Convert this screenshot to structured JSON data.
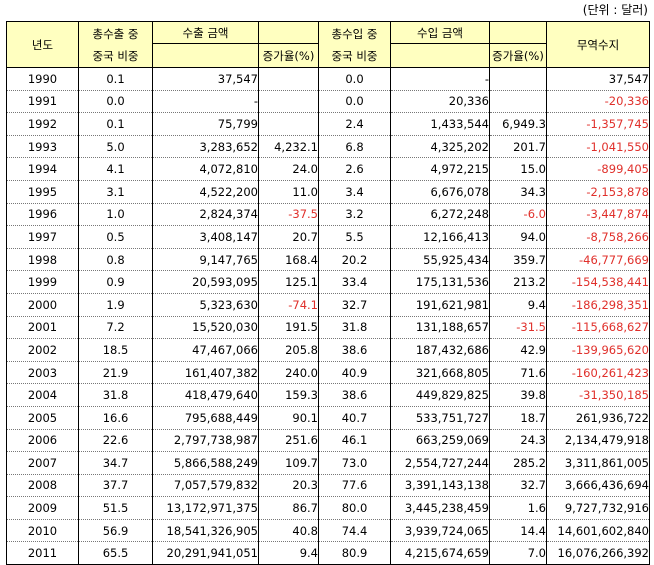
{
  "unit_note": "(단위 : 달러)",
  "headers": {
    "year": "년도",
    "export_share_line1": "총수출 중",
    "export_share_line2": "중국 비중",
    "export_amount": "수출 금액",
    "export_growth": "증가율(%)",
    "import_share_line1": "총수입 중",
    "import_share_line2": "중국 비중",
    "import_amount": "수입 금액",
    "import_growth": "증가율(%)",
    "balance": "무역수지"
  },
  "rows": [
    {
      "year": "1990",
      "export_share": "0.1",
      "export_amount": "37,547",
      "export_growth": "",
      "import_share": "0.0",
      "import_amount": "-",
      "import_growth": "",
      "balance": "37,547"
    },
    {
      "year": "1991",
      "export_share": "0.0",
      "export_amount": "-",
      "export_growth": "",
      "import_share": "0.0",
      "import_amount": "20,336",
      "import_growth": "",
      "balance": "-20,336"
    },
    {
      "year": "1992",
      "export_share": "0.1",
      "export_amount": "75,799",
      "export_growth": "",
      "import_share": "2.4",
      "import_amount": "1,433,544",
      "import_growth": "6,949.3",
      "balance": "-1,357,745"
    },
    {
      "year": "1993",
      "export_share": "5.0",
      "export_amount": "3,283,652",
      "export_growth": "4,232.1",
      "import_share": "6.8",
      "import_amount": "4,325,202",
      "import_growth": "201.7",
      "balance": "-1,041,550"
    },
    {
      "year": "1994",
      "export_share": "4.1",
      "export_amount": "4,072,810",
      "export_growth": "24.0",
      "import_share": "2.6",
      "import_amount": "4,972,215",
      "import_growth": "15.0",
      "balance": "-899,405"
    },
    {
      "year": "1995",
      "export_share": "3.1",
      "export_amount": "4,522,200",
      "export_growth": "11.0",
      "import_share": "3.4",
      "import_amount": "6,676,078",
      "import_growth": "34.3",
      "balance": "-2,153,878"
    },
    {
      "year": "1996",
      "export_share": "1.0",
      "export_amount": "2,824,374",
      "export_growth": "-37.5",
      "import_share": "3.2",
      "import_amount": "6,272,248",
      "import_growth": "-6.0",
      "balance": "-3,447,874"
    },
    {
      "year": "1997",
      "export_share": "0.5",
      "export_amount": "3,408,147",
      "export_growth": "20.7",
      "import_share": "5.5",
      "import_amount": "12,166,413",
      "import_growth": "94.0",
      "balance": "-8,758,266"
    },
    {
      "year": "1998",
      "export_share": "0.8",
      "export_amount": "9,147,765",
      "export_growth": "168.4",
      "import_share": "20.2",
      "import_amount": "55,925,434",
      "import_growth": "359.7",
      "balance": "-46,777,669"
    },
    {
      "year": "1999",
      "export_share": "0.9",
      "export_amount": "20,593,095",
      "export_growth": "125.1",
      "import_share": "33.4",
      "import_amount": "175,131,536",
      "import_growth": "213.2",
      "balance": "-154,538,441"
    },
    {
      "year": "2000",
      "export_share": "1.9",
      "export_amount": "5,323,630",
      "export_growth": "-74.1",
      "import_share": "32.7",
      "import_amount": "191,621,981",
      "import_growth": "9.4",
      "balance": "-186,298,351"
    },
    {
      "year": "2001",
      "export_share": "7.2",
      "export_amount": "15,520,030",
      "export_growth": "191.5",
      "import_share": "31.8",
      "import_amount": "131,188,657",
      "import_growth": "-31.5",
      "balance": "-115,668,627"
    },
    {
      "year": "2002",
      "export_share": "18.5",
      "export_amount": "47,467,066",
      "export_growth": "205.8",
      "import_share": "38.6",
      "import_amount": "187,432,686",
      "import_growth": "42.9",
      "balance": "-139,965,620"
    },
    {
      "year": "2003",
      "export_share": "21.9",
      "export_amount": "161,407,382",
      "export_growth": "240.0",
      "import_share": "40.9",
      "import_amount": "321,668,805",
      "import_growth": "71.6",
      "balance": "-160,261,423"
    },
    {
      "year": "2004",
      "export_share": "31.8",
      "export_amount": "418,479,640",
      "export_growth": "159.3",
      "import_share": "38.6",
      "import_amount": "449,829,825",
      "import_growth": "39.8",
      "balance": "-31,350,185"
    },
    {
      "year": "2005",
      "export_share": "16.6",
      "export_amount": "795,688,449",
      "export_growth": "90.1",
      "import_share": "40.7",
      "import_amount": "533,751,727",
      "import_growth": "18.7",
      "balance": "261,936,722"
    },
    {
      "year": "2006",
      "export_share": "22.6",
      "export_amount": "2,797,738,987",
      "export_growth": "251.6",
      "import_share": "46.1",
      "import_amount": "663,259,069",
      "import_growth": "24.3",
      "balance": "2,134,479,918"
    },
    {
      "year": "2007",
      "export_share": "34.7",
      "export_amount": "5,866,588,249",
      "export_growth": "109.7",
      "import_share": "73.0",
      "import_amount": "2,554,727,244",
      "import_growth": "285.2",
      "balance": "3,311,861,005"
    },
    {
      "year": "2008",
      "export_share": "37.7",
      "export_amount": "7,057,579,832",
      "export_growth": "20.3",
      "import_share": "77.6",
      "import_amount": "3,391,143,138",
      "import_growth": "32.7",
      "balance": "3,666,436,694"
    },
    {
      "year": "2009",
      "export_share": "51.5",
      "export_amount": "13,172,971,375",
      "export_growth": "86.7",
      "import_share": "80.0",
      "import_amount": "3,445,238,459",
      "import_growth": "1.6",
      "balance": "9,727,732,916"
    },
    {
      "year": "2010",
      "export_share": "56.9",
      "export_amount": "18,541,326,905",
      "export_growth": "40.8",
      "import_share": "74.4",
      "import_amount": "3,939,724,065",
      "import_growth": "14.4",
      "balance": "14,601,602,840"
    },
    {
      "year": "2011",
      "export_share": "65.5",
      "export_amount": "20,291,941,051",
      "export_growth": "9.4",
      "import_share": "80.9",
      "import_amount": "4,215,674,659",
      "import_growth": "7.0",
      "balance": "16,076,266,392"
    }
  ],
  "colors": {
    "header_bg": "#ffffc0",
    "negative": "#e0302b"
  }
}
